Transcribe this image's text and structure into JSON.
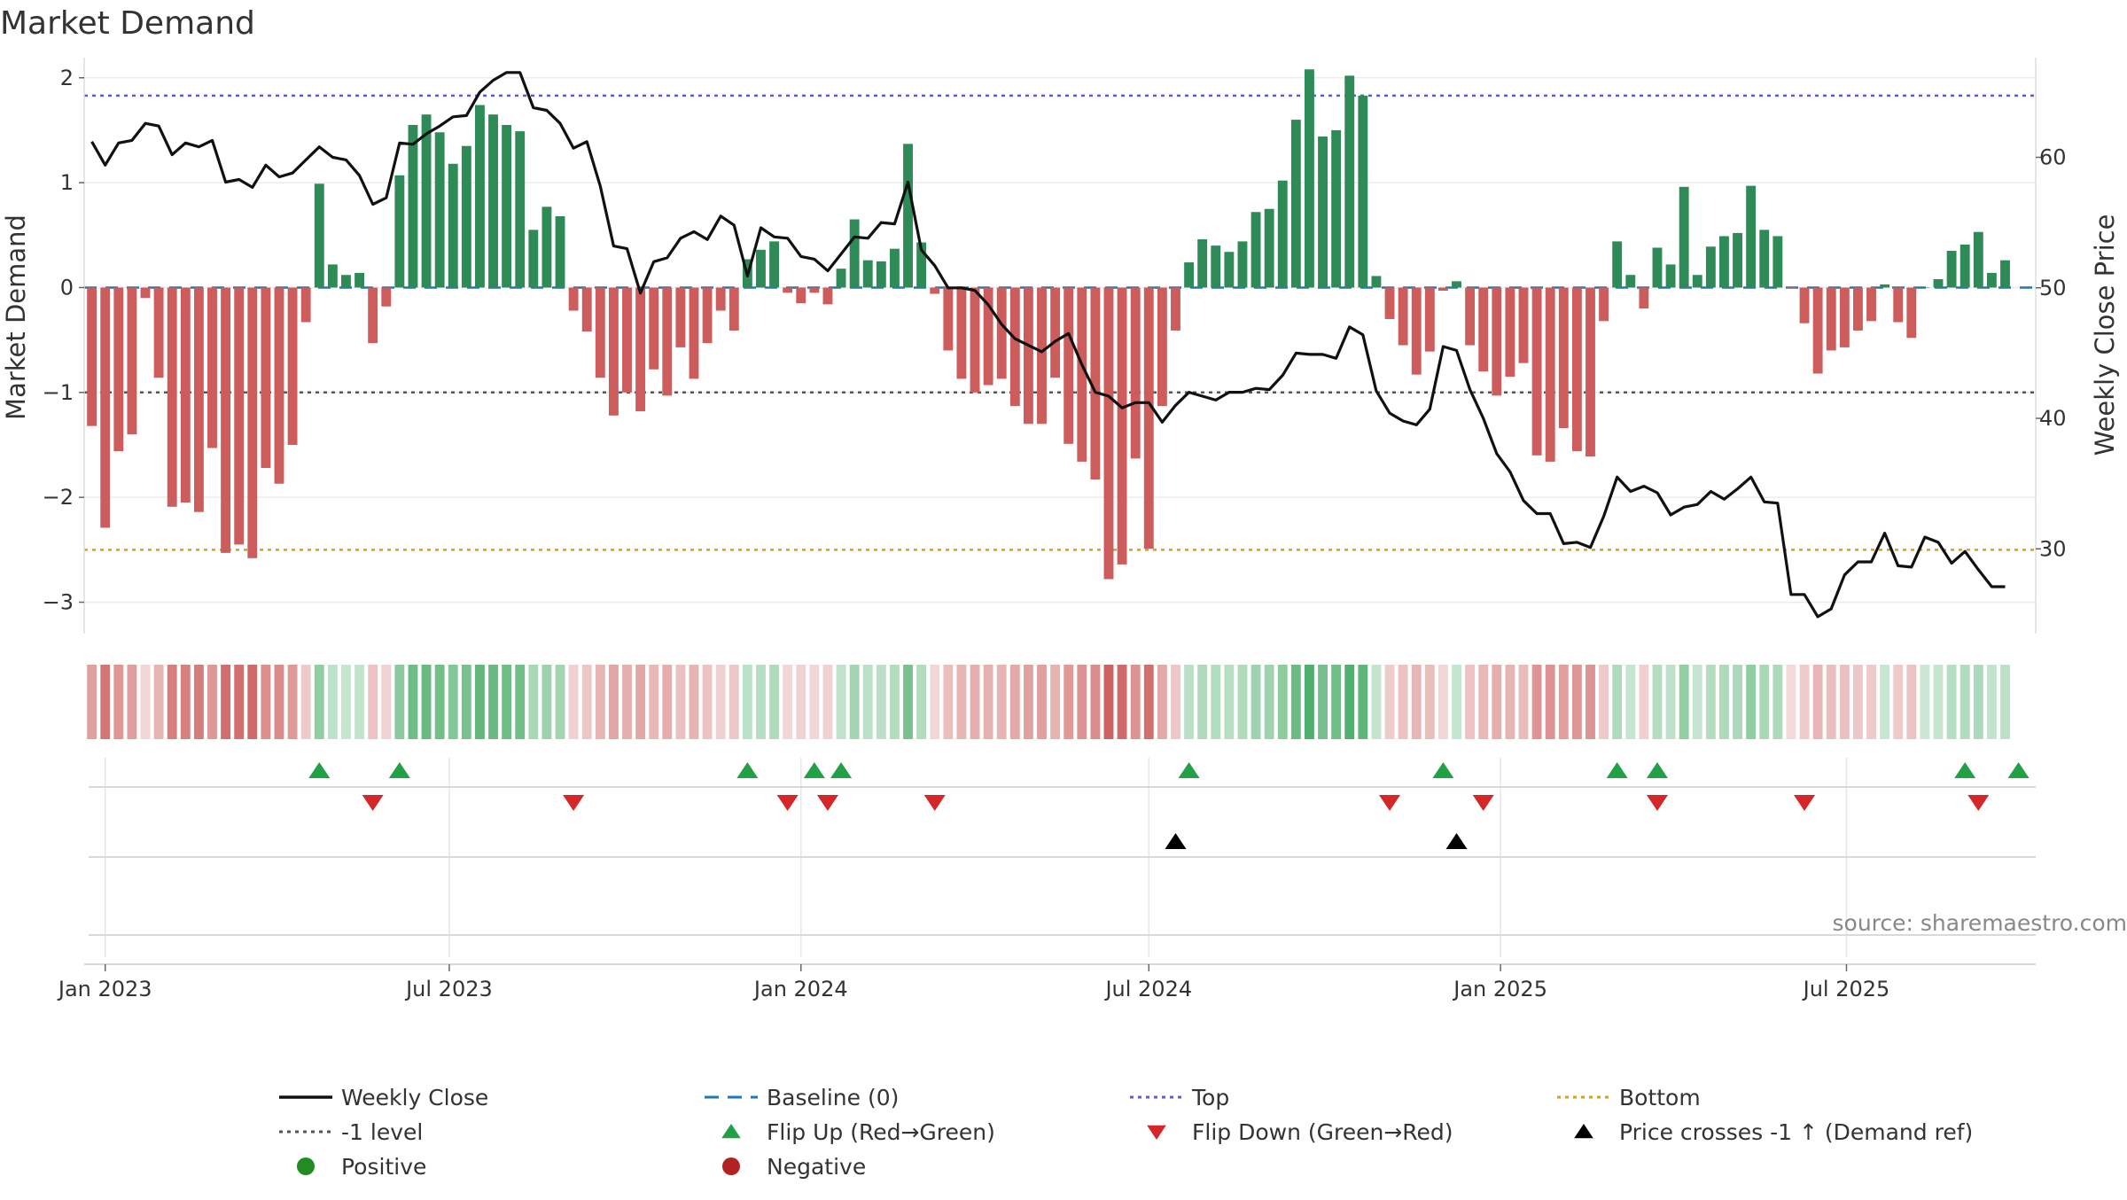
{
  "title": "Market Demand",
  "source": "source: sharemaestro.com",
  "colors": {
    "pos_bar": "#2e8b57",
    "neg_bar": "#cd5c5c",
    "close": "#111111",
    "baseline": "#1f77b4",
    "top": "#5b5bd6",
    "minus1": "#555555",
    "bottom": "#d4a020",
    "flip_up": "#22a046",
    "flip_down": "#d62728",
    "cross": "#000000",
    "positive_dot": "#228b22",
    "negative_dot": "#b22222"
  },
  "chart_data": {
    "type": "bar",
    "title": "Market Demand",
    "ylabel_left": "Market Demand",
    "ylabel_right": "Weekly Close Price",
    "x_start": "2022-12-26",
    "x_range": [
      "2022-12-22",
      "2025-10-08"
    ],
    "x_ticks": [
      {
        "date": "2023-01-02",
        "label": "Jan 2023"
      },
      {
        "date": "2023-07-01",
        "label": "Jul 2023"
      },
      {
        "date": "2024-01-01",
        "label": "Jan 2024"
      },
      {
        "date": "2024-07-01",
        "label": "Jul 2024"
      },
      {
        "date": "2025-01-01",
        "label": "Jan 2025"
      },
      {
        "date": "2025-07-01",
        "label": "Jul 2025"
      }
    ],
    "y_left_range": [
      -3.3,
      2.15
    ],
    "y_left_ticks": [
      2,
      1,
      0,
      -1,
      -2,
      -3
    ],
    "y_left_tick_labels": [
      "2",
      "1",
      "0",
      "−1",
      "−2",
      "−3"
    ],
    "y_right_range": [
      23.5,
      67.3
    ],
    "y_right_ticks": [
      60,
      50,
      40,
      30
    ],
    "y_right_tick_labels": [
      "60",
      "50",
      "40",
      "30"
    ],
    "levels": {
      "top": 1.83,
      "minus1": -1.0,
      "bottom": -2.5,
      "baseline": 0
    },
    "demand": [
      -1.32,
      -2.29,
      -1.56,
      -1.4,
      -0.1,
      -0.86,
      -2.09,
      -2.05,
      -2.14,
      -1.53,
      -2.53,
      -2.45,
      -2.58,
      -1.72,
      -1.87,
      -1.5,
      -0.33,
      0.99,
      0.22,
      0.12,
      0.14,
      -0.53,
      -0.18,
      1.07,
      1.55,
      1.65,
      1.48,
      1.18,
      1.35,
      1.74,
      1.65,
      1.55,
      1.49,
      0.55,
      0.77,
      0.68,
      -0.22,
      -0.42,
      -0.86,
      -1.22,
      -1.0,
      -1.18,
      -0.78,
      -1.03,
      -0.57,
      -0.87,
      -0.53,
      -0.22,
      -0.41,
      0.27,
      0.36,
      0.44,
      -0.05,
      -0.15,
      -0.05,
      -0.16,
      0.18,
      0.65,
      0.26,
      0.25,
      0.37,
      1.37,
      0.43,
      -0.06,
      -0.6,
      -0.87,
      -1.0,
      -0.93,
      -0.87,
      -1.13,
      -1.3,
      -1.3,
      -0.86,
      -1.49,
      -1.66,
      -1.83,
      -2.78,
      -2.64,
      -1.63,
      -2.49,
      -1.13,
      -0.41,
      0.24,
      0.46,
      0.4,
      0.34,
      0.44,
      0.72,
      0.75,
      1.02,
      1.6,
      2.08,
      1.44,
      1.5,
      2.02,
      1.83,
      0.11,
      -0.3,
      -0.55,
      -0.83,
      -0.61,
      -0.03,
      0.06,
      -0.55,
      -0.8,
      -1.03,
      -0.85,
      -0.72,
      -1.6,
      -1.66,
      -1.34,
      -1.56,
      -1.61,
      -0.32,
      0.44,
      0.12,
      -0.2,
      0.38,
      0.22,
      0.96,
      0.12,
      0.39,
      0.49,
      0.52,
      0.97,
      0.55,
      0.49,
      -0.01,
      -0.34,
      -0.82,
      -0.6,
      -0.57,
      -0.41,
      -0.32,
      0.03,
      -0.33,
      -0.48,
      0.0,
      0.08,
      0.35,
      0.41,
      0.53,
      0.14,
      0.26
    ],
    "close": [
      61.2,
      59.4,
      61.1,
      61.3,
      62.6,
      62.4,
      60.2,
      61.1,
      60.8,
      61.3,
      58.1,
      58.3,
      57.7,
      59.4,
      58.5,
      58.8,
      59.8,
      60.8,
      60.0,
      59.8,
      58.6,
      56.4,
      56.9,
      61.1,
      61.0,
      61.8,
      62.4,
      63.1,
      63.2,
      65.0,
      65.9,
      66.5,
      66.5,
      63.8,
      63.6,
      62.6,
      60.7,
      61.2,
      57.8,
      53.2,
      53.0,
      49.6,
      52.0,
      52.3,
      53.8,
      54.3,
      53.7,
      55.5,
      54.8,
      50.9,
      54.6,
      53.9,
      53.8,
      52.4,
      52.2,
      51.3,
      52.6,
      53.9,
      53.8,
      55.0,
      54.9,
      58.1,
      52.9,
      51.7,
      50.0,
      50.0,
      49.8,
      48.7,
      47.2,
      46.1,
      45.6,
      45.1,
      45.9,
      46.5,
      44.1,
      42.0,
      41.7,
      40.8,
      41.2,
      41.2,
      39.7,
      41.0,
      42.0,
      41.7,
      41.4,
      42.0,
      42.0,
      42.3,
      42.2,
      43.3,
      45.0,
      44.9,
      44.9,
      44.6,
      47.0,
      46.4,
      42.1,
      40.4,
      39.8,
      39.5,
      40.7,
      45.5,
      45.2,
      42.2,
      40.0,
      37.3,
      35.9,
      33.7,
      32.7,
      32.7,
      30.4,
      30.5,
      30.1,
      32.5,
      35.5,
      34.4,
      34.8,
      34.3,
      32.6,
      33.2,
      33.4,
      34.4,
      33.8,
      34.6,
      35.5,
      33.6,
      33.5,
      26.5,
      26.5,
      24.8,
      25.4,
      28.0,
      29.0,
      29.0,
      31.2,
      28.7,
      28.6,
      30.9,
      30.5,
      28.9,
      29.8,
      28.4,
      27.1,
      27.1
    ],
    "flip_up_idx": [
      17,
      23,
      49,
      54,
      56,
      82,
      101,
      114,
      117,
      140,
      144
    ],
    "flip_down_idx": [
      21,
      36,
      52,
      55,
      63,
      97,
      104,
      117,
      128,
      141
    ],
    "cross_idx": [
      81,
      102
    ]
  },
  "legend": [
    {
      "kind": "line-solid",
      "color": "#111111",
      "label": "Weekly Close"
    },
    {
      "kind": "line-dash",
      "color": "#1f77b4",
      "label": "Baseline (0)"
    },
    {
      "kind": "line-dot",
      "color": "#5b5bd6",
      "label": "Top"
    },
    {
      "kind": "line-dot",
      "color": "#d4a020",
      "label": "Bottom"
    },
    {
      "kind": "line-dot",
      "color": "#555555",
      "label": "-1 level"
    },
    {
      "kind": "tri-up",
      "color": "#22a046",
      "label": "Flip Up (Red→Green)"
    },
    {
      "kind": "tri-down",
      "color": "#d62728",
      "label": "Flip Down (Green→Red)"
    },
    {
      "kind": "tri-up",
      "color": "#000000",
      "label": "Price crosses -1 ↑ (Demand ref)"
    },
    {
      "kind": "dot",
      "color": "#228b22",
      "label": "Positive"
    },
    {
      "kind": "dot",
      "color": "#b22222",
      "label": "Negative"
    }
  ]
}
